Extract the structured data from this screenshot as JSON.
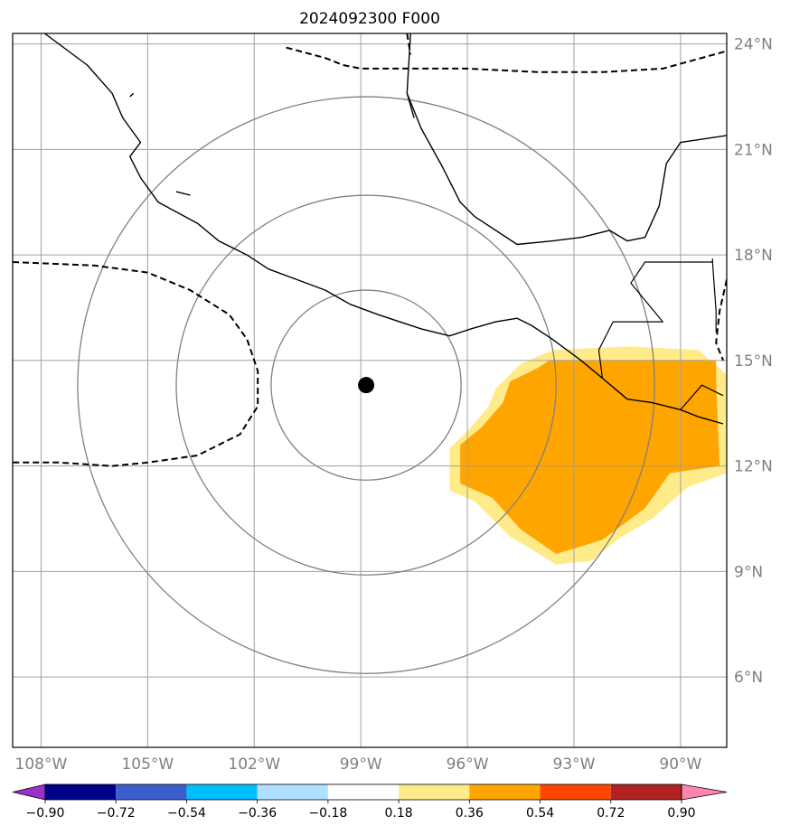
{
  "chart_data": {
    "type": "map",
    "title": "2024092300 F000",
    "projection": "plate_carree",
    "extent": {
      "lon": [
        -108.8,
        -88.7
      ],
      "lat": [
        4.0,
        24.3
      ]
    },
    "lat_ticks": [
      {
        "value": 6,
        "label": "6°N"
      },
      {
        "value": 9,
        "label": "9°N"
      },
      {
        "value": 12,
        "label": "12°N"
      },
      {
        "value": 15,
        "label": "15°N"
      },
      {
        "value": 18,
        "label": "18°N"
      },
      {
        "value": 21,
        "label": "21°N"
      },
      {
        "value": 24,
        "label": "24°N"
      }
    ],
    "lon_ticks": [
      {
        "value": -108,
        "label": "108°W"
      },
      {
        "value": -105,
        "label": "105°W"
      },
      {
        "value": -102,
        "label": "102°W"
      },
      {
        "value": -99,
        "label": "99°W"
      },
      {
        "value": -96,
        "label": "96°W"
      },
      {
        "value": -93,
        "label": "93°W"
      },
      {
        "value": -90,
        "label": "90°W"
      }
    ],
    "grid": true,
    "center": {
      "lon": -98.85,
      "lat": 14.3
    },
    "range_rings_deg": [
      2.7,
      5.4,
      8.2
    ],
    "colorbar": {
      "orientation": "horizontal",
      "extend": "both",
      "levels": [
        -0.9,
        -0.72,
        -0.54,
        -0.36,
        -0.18,
        0.18,
        0.36,
        0.54,
        0.72,
        0.9
      ],
      "tick_labels": [
        "−0.90",
        "−0.72",
        "−0.54",
        "−0.36",
        "−0.18",
        "0.18",
        "0.36",
        "0.54",
        "0.72",
        "0.90"
      ],
      "colors": [
        "#9932cc",
        "#00008b",
        "#3a5fcd",
        "#00bfff",
        "#b0e0ff",
        "#ffffff",
        "#ffeb8a",
        "#ffa500",
        "#ff4500",
        "#b22222",
        "#ff85b0"
      ]
    },
    "shaded_regions": [
      {
        "level_range": [
          0.18,
          0.36
        ],
        "color": "#ffeb8a",
        "lonlat": [
          [
            -93.6,
            15.3
          ],
          [
            -91.5,
            15.4
          ],
          [
            -89.5,
            15.3
          ],
          [
            -88.7,
            14.6
          ],
          [
            -88.7,
            11.8
          ],
          [
            -89.8,
            11.4
          ],
          [
            -90.8,
            10.5
          ],
          [
            -91.8,
            9.9
          ],
          [
            -92.5,
            9.3
          ],
          [
            -93.5,
            9.2
          ],
          [
            -94.8,
            10.0
          ],
          [
            -95.8,
            11.0
          ],
          [
            -96.5,
            11.3
          ],
          [
            -96.5,
            12.5
          ],
          [
            -95.9,
            13.1
          ],
          [
            -95.4,
            13.7
          ],
          [
            -95.2,
            14.2
          ],
          [
            -94.5,
            14.9
          ]
        ]
      },
      {
        "level_range": [
          0.36,
          0.54
        ],
        "color": "#ffa500",
        "lonlat": [
          [
            -93.7,
            15.0
          ],
          [
            -89.0,
            15.0
          ],
          [
            -89.0,
            14.5
          ],
          [
            -88.9,
            12.0
          ],
          [
            -90.3,
            11.8
          ],
          [
            -91.0,
            10.8
          ],
          [
            -92.2,
            9.9
          ],
          [
            -93.5,
            9.5
          ],
          [
            -94.5,
            10.2
          ],
          [
            -95.3,
            11.1
          ],
          [
            -96.2,
            11.5
          ],
          [
            -96.2,
            12.6
          ],
          [
            -95.6,
            13.1
          ],
          [
            -95.0,
            13.8
          ],
          [
            -94.8,
            14.4
          ],
          [
            -94.0,
            14.8
          ]
        ]
      }
    ],
    "contours": {
      "style": "dashed",
      "lines": [
        [
          [
            -101.1,
            23.9
          ],
          [
            -100.0,
            23.6
          ],
          [
            -99.5,
            23.4
          ],
          [
            -99.0,
            23.3
          ],
          [
            -97.5,
            23.3
          ],
          [
            -96.0,
            23.3
          ],
          [
            -94.0,
            23.2
          ],
          [
            -92.2,
            23.2
          ],
          [
            -90.5,
            23.3
          ],
          [
            -88.7,
            23.8
          ]
        ],
        [
          [
            -97.7,
            24.3
          ],
          [
            -97.6,
            23.7
          ]
        ],
        [
          [
            -108.8,
            17.8
          ],
          [
            -106.5,
            17.7
          ],
          [
            -105.0,
            17.5
          ],
          [
            -103.8,
            17.0
          ],
          [
            -102.7,
            16.3
          ],
          [
            -102.2,
            15.6
          ],
          [
            -101.9,
            14.7
          ],
          [
            -101.9,
            13.7
          ],
          [
            -102.4,
            12.9
          ],
          [
            -103.6,
            12.3
          ],
          [
            -105.0,
            12.1
          ],
          [
            -106.0,
            12.0
          ],
          [
            -107.5,
            12.1
          ],
          [
            -108.8,
            12.1
          ]
        ],
        [
          [
            -88.7,
            17.3
          ],
          [
            -88.9,
            16.4
          ],
          [
            -89.0,
            15.5
          ],
          [
            -88.8,
            15.0
          ]
        ]
      ]
    },
    "coastlines": [
      [
        [
          -107.9,
          24.3
        ],
        [
          -106.7,
          23.4
        ],
        [
          -106.0,
          22.6
        ],
        [
          -105.7,
          21.9
        ],
        [
          -105.2,
          21.2
        ],
        [
          -105.5,
          20.8
        ],
        [
          -105.2,
          20.2
        ],
        [
          -104.7,
          19.5
        ],
        [
          -103.6,
          18.9
        ],
        [
          -103.0,
          18.4
        ],
        [
          -102.2,
          18.0
        ],
        [
          -101.6,
          17.6
        ],
        [
          -100.8,
          17.3
        ],
        [
          -100.0,
          17.0
        ],
        [
          -99.3,
          16.6
        ],
        [
          -98.5,
          16.3
        ],
        [
          -97.3,
          15.9
        ],
        [
          -96.5,
          15.7
        ],
        [
          -95.9,
          15.9
        ],
        [
          -95.2,
          16.1
        ],
        [
          -94.6,
          16.2
        ],
        [
          -94.2,
          16.0
        ],
        [
          -93.6,
          15.6
        ],
        [
          -92.8,
          15.0
        ],
        [
          -92.2,
          14.5
        ],
        [
          -91.5,
          13.9
        ],
        [
          -90.8,
          13.8
        ],
        [
          -90.0,
          13.6
        ],
        [
          -89.5,
          13.4
        ],
        [
          -88.8,
          13.2
        ]
      ],
      [
        [
          -97.6,
          24.3
        ],
        [
          -97.7,
          22.6
        ],
        [
          -97.3,
          21.6
        ],
        [
          -96.7,
          20.5
        ],
        [
          -96.2,
          19.5
        ],
        [
          -95.8,
          19.1
        ],
        [
          -94.6,
          18.3
        ],
        [
          -93.6,
          18.4
        ],
        [
          -92.8,
          18.5
        ],
        [
          -92.0,
          18.7
        ],
        [
          -91.5,
          18.4
        ],
        [
          -91.0,
          18.5
        ],
        [
          -90.6,
          19.4
        ],
        [
          -90.4,
          20.6
        ],
        [
          -90.0,
          21.2
        ],
        [
          -88.7,
          21.4
        ]
      ],
      [
        [
          -105.4,
          22.6
        ],
        [
          -105.5,
          22.5
        ]
      ],
      [
        [
          -104.2,
          19.8
        ],
        [
          -103.8,
          19.7
        ]
      ],
      [
        [
          -97.7,
          22.6
        ],
        [
          -97.5,
          21.9
        ]
      ]
    ],
    "borders": [
      [
        [
          -92.2,
          14.5
        ],
        [
          -92.3,
          15.3
        ],
        [
          -91.9,
          16.1
        ],
        [
          -90.5,
          16.1
        ],
        [
          -91.4,
          17.2
        ],
        [
          -91.0,
          17.8
        ],
        [
          -89.1,
          17.8
        ],
        [
          -89.1,
          17.9
        ]
      ],
      [
        [
          -89.1,
          17.8
        ],
        [
          -89.0,
          16.4
        ],
        [
          -89.0,
          15.8
        ]
      ],
      [
        [
          -90.0,
          13.6
        ],
        [
          -89.4,
          14.3
        ],
        [
          -88.8,
          14.0
        ]
      ]
    ],
    "center_marker": {
      "lon": -98.85,
      "lat": 14.3
    }
  }
}
